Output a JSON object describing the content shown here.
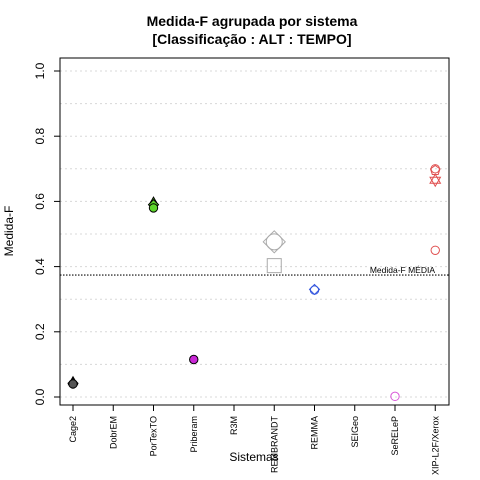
{
  "chart_data": {
    "type": "scatter",
    "title": "Medida-F agrupada por sistema",
    "subtitle": "[Classificação : ALT : TEMPO]",
    "xlabel": "Sistemas",
    "ylabel": "Medida-F",
    "ylim": [
      0,
      1
    ],
    "yticks": [
      "0.0",
      "0.2",
      "0.4",
      "0.6",
      "0.8",
      "1.0"
    ],
    "grid": true,
    "categories": [
      "Cage2",
      "DobrEM",
      "PorTexTO",
      "Priberam",
      "R3M",
      "REMBRANDT",
      "REMMA",
      "SEIGeo",
      "SeRELeP",
      "XIP-L2F/Xerox"
    ],
    "reference_line": {
      "label": "Medida-F MÉDIA",
      "value": 0.374
    },
    "points": [
      {
        "category": "Cage2",
        "value": 0.046,
        "marker": "triangle",
        "color": "#555555",
        "filled": true
      },
      {
        "category": "Cage2",
        "value": 0.042,
        "marker": "diamond",
        "color": "#555555",
        "filled": true
      },
      {
        "category": "Cage2",
        "value": 0.04,
        "marker": "circle",
        "color": "#555555",
        "filled": true
      },
      {
        "category": "PorTexTO",
        "value": 0.597,
        "marker": "triangle",
        "color": "#5ed62b",
        "filled": true
      },
      {
        "category": "PorTexTO",
        "value": 0.59,
        "marker": "diamond",
        "color": "#5ed62b",
        "filled": true
      },
      {
        "category": "PorTexTO",
        "value": 0.58,
        "marker": "circle",
        "color": "#5ed62b",
        "filled": true
      },
      {
        "category": "Priberam",
        "value": 0.115,
        "marker": "circle",
        "color": "#c928d6",
        "filled": true
      },
      {
        "category": "REMBRANDT",
        "value": 0.476,
        "marker": "diamond-large",
        "color": "#aaaaaa",
        "filled": false
      },
      {
        "category": "REMBRANDT",
        "value": 0.476,
        "marker": "circle-large",
        "color": "#aaaaaa",
        "filled": false
      },
      {
        "category": "REMBRANDT",
        "value": 0.403,
        "marker": "square",
        "color": "#aaaaaa",
        "filled": false
      },
      {
        "category": "REMMA",
        "value": 0.33,
        "marker": "diamond",
        "color": "#3355dd",
        "filled": false
      },
      {
        "category": "REMMA",
        "value": 0.328,
        "marker": "circle",
        "color": "#3355dd",
        "filled": false
      },
      {
        "category": "SeRELeP",
        "value": 0.002,
        "marker": "circle",
        "color": "#d855d8",
        "filled": false
      },
      {
        "category": "XIP-L2F/Xerox",
        "value": 0.7,
        "marker": "circle",
        "color": "#e05050",
        "filled": false
      },
      {
        "category": "XIP-L2F/Xerox",
        "value": 0.695,
        "marker": "pentagon",
        "color": "#e05050",
        "filled": false
      },
      {
        "category": "XIP-L2F/Xerox",
        "value": 0.665,
        "marker": "star-david",
        "color": "#e05050",
        "filled": false
      },
      {
        "category": "XIP-L2F/Xerox",
        "value": 0.45,
        "marker": "circle",
        "color": "#e05050",
        "filled": false
      }
    ]
  }
}
